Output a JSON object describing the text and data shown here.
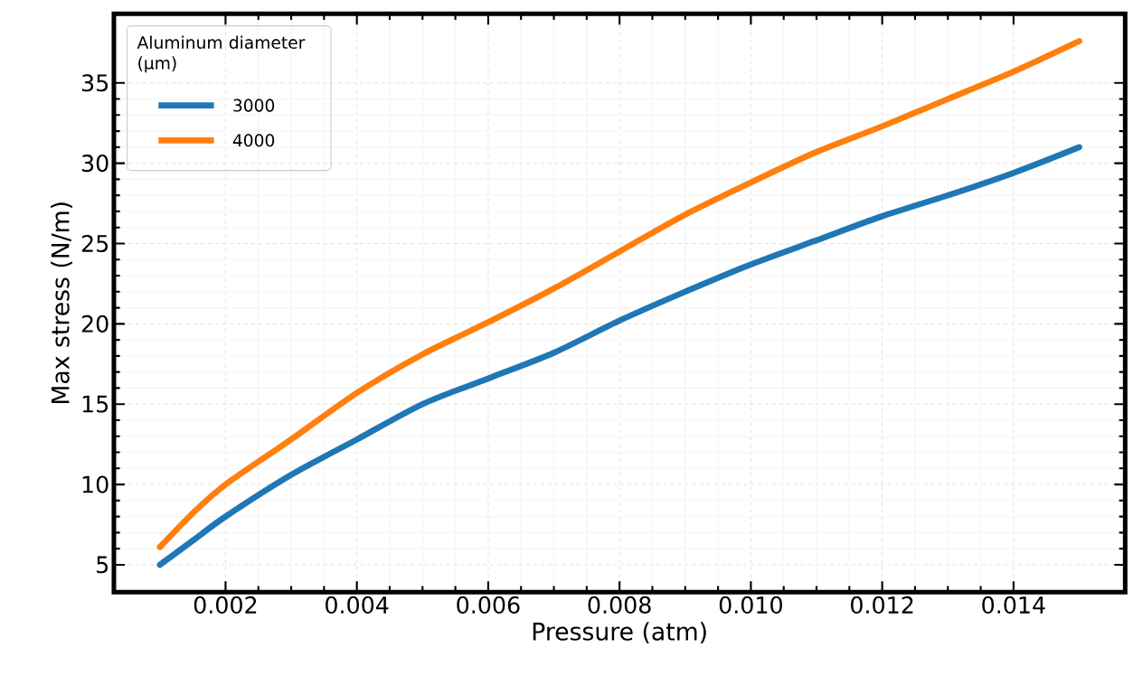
{
  "chart_data": {
    "type": "line",
    "xlabel": "Pressure (atm)",
    "ylabel": "Max stress (N/m)",
    "legend_title": "Aluminum diameter (µm)",
    "legend": "top left",
    "grid": true,
    "xlim": [
      0.0003,
      0.0157
    ],
    "ylim": [
      3.3,
      39.3
    ],
    "xticks": [
      {
        "value": 0.002,
        "label": "0.002"
      },
      {
        "value": 0.004,
        "label": "0.004"
      },
      {
        "value": 0.006,
        "label": "0.006"
      },
      {
        "value": 0.008,
        "label": "0.008"
      },
      {
        "value": 0.01,
        "label": "0.010"
      },
      {
        "value": 0.012,
        "label": "0.012"
      },
      {
        "value": 0.014,
        "label": "0.014"
      }
    ],
    "yticks": [
      5,
      10,
      15,
      20,
      25,
      30,
      35
    ],
    "series": [
      {
        "name": "3000",
        "color": "#1f77b4",
        "x": [
          0.001,
          0.0015,
          0.002,
          0.003,
          0.004,
          0.005,
          0.006,
          0.007,
          0.008,
          0.009,
          0.01,
          0.011,
          0.012,
          0.013,
          0.014,
          0.015
        ],
        "values": [
          5.0,
          6.5,
          8.0,
          10.6,
          12.8,
          15.0,
          16.6,
          18.2,
          20.2,
          22.0,
          23.7,
          25.2,
          26.7,
          28.0,
          29.4,
          31.0
        ]
      },
      {
        "name": "4000",
        "color": "#ff7f0e",
        "x": [
          0.001,
          0.0015,
          0.002,
          0.003,
          0.004,
          0.005,
          0.006,
          0.007,
          0.008,
          0.009,
          0.01,
          0.011,
          0.012,
          0.013,
          0.014,
          0.015
        ],
        "values": [
          6.1,
          8.2,
          10.0,
          12.8,
          15.7,
          18.1,
          20.1,
          22.2,
          24.5,
          26.8,
          28.8,
          30.7,
          32.3,
          34.0,
          35.7,
          37.6
        ]
      }
    ]
  }
}
